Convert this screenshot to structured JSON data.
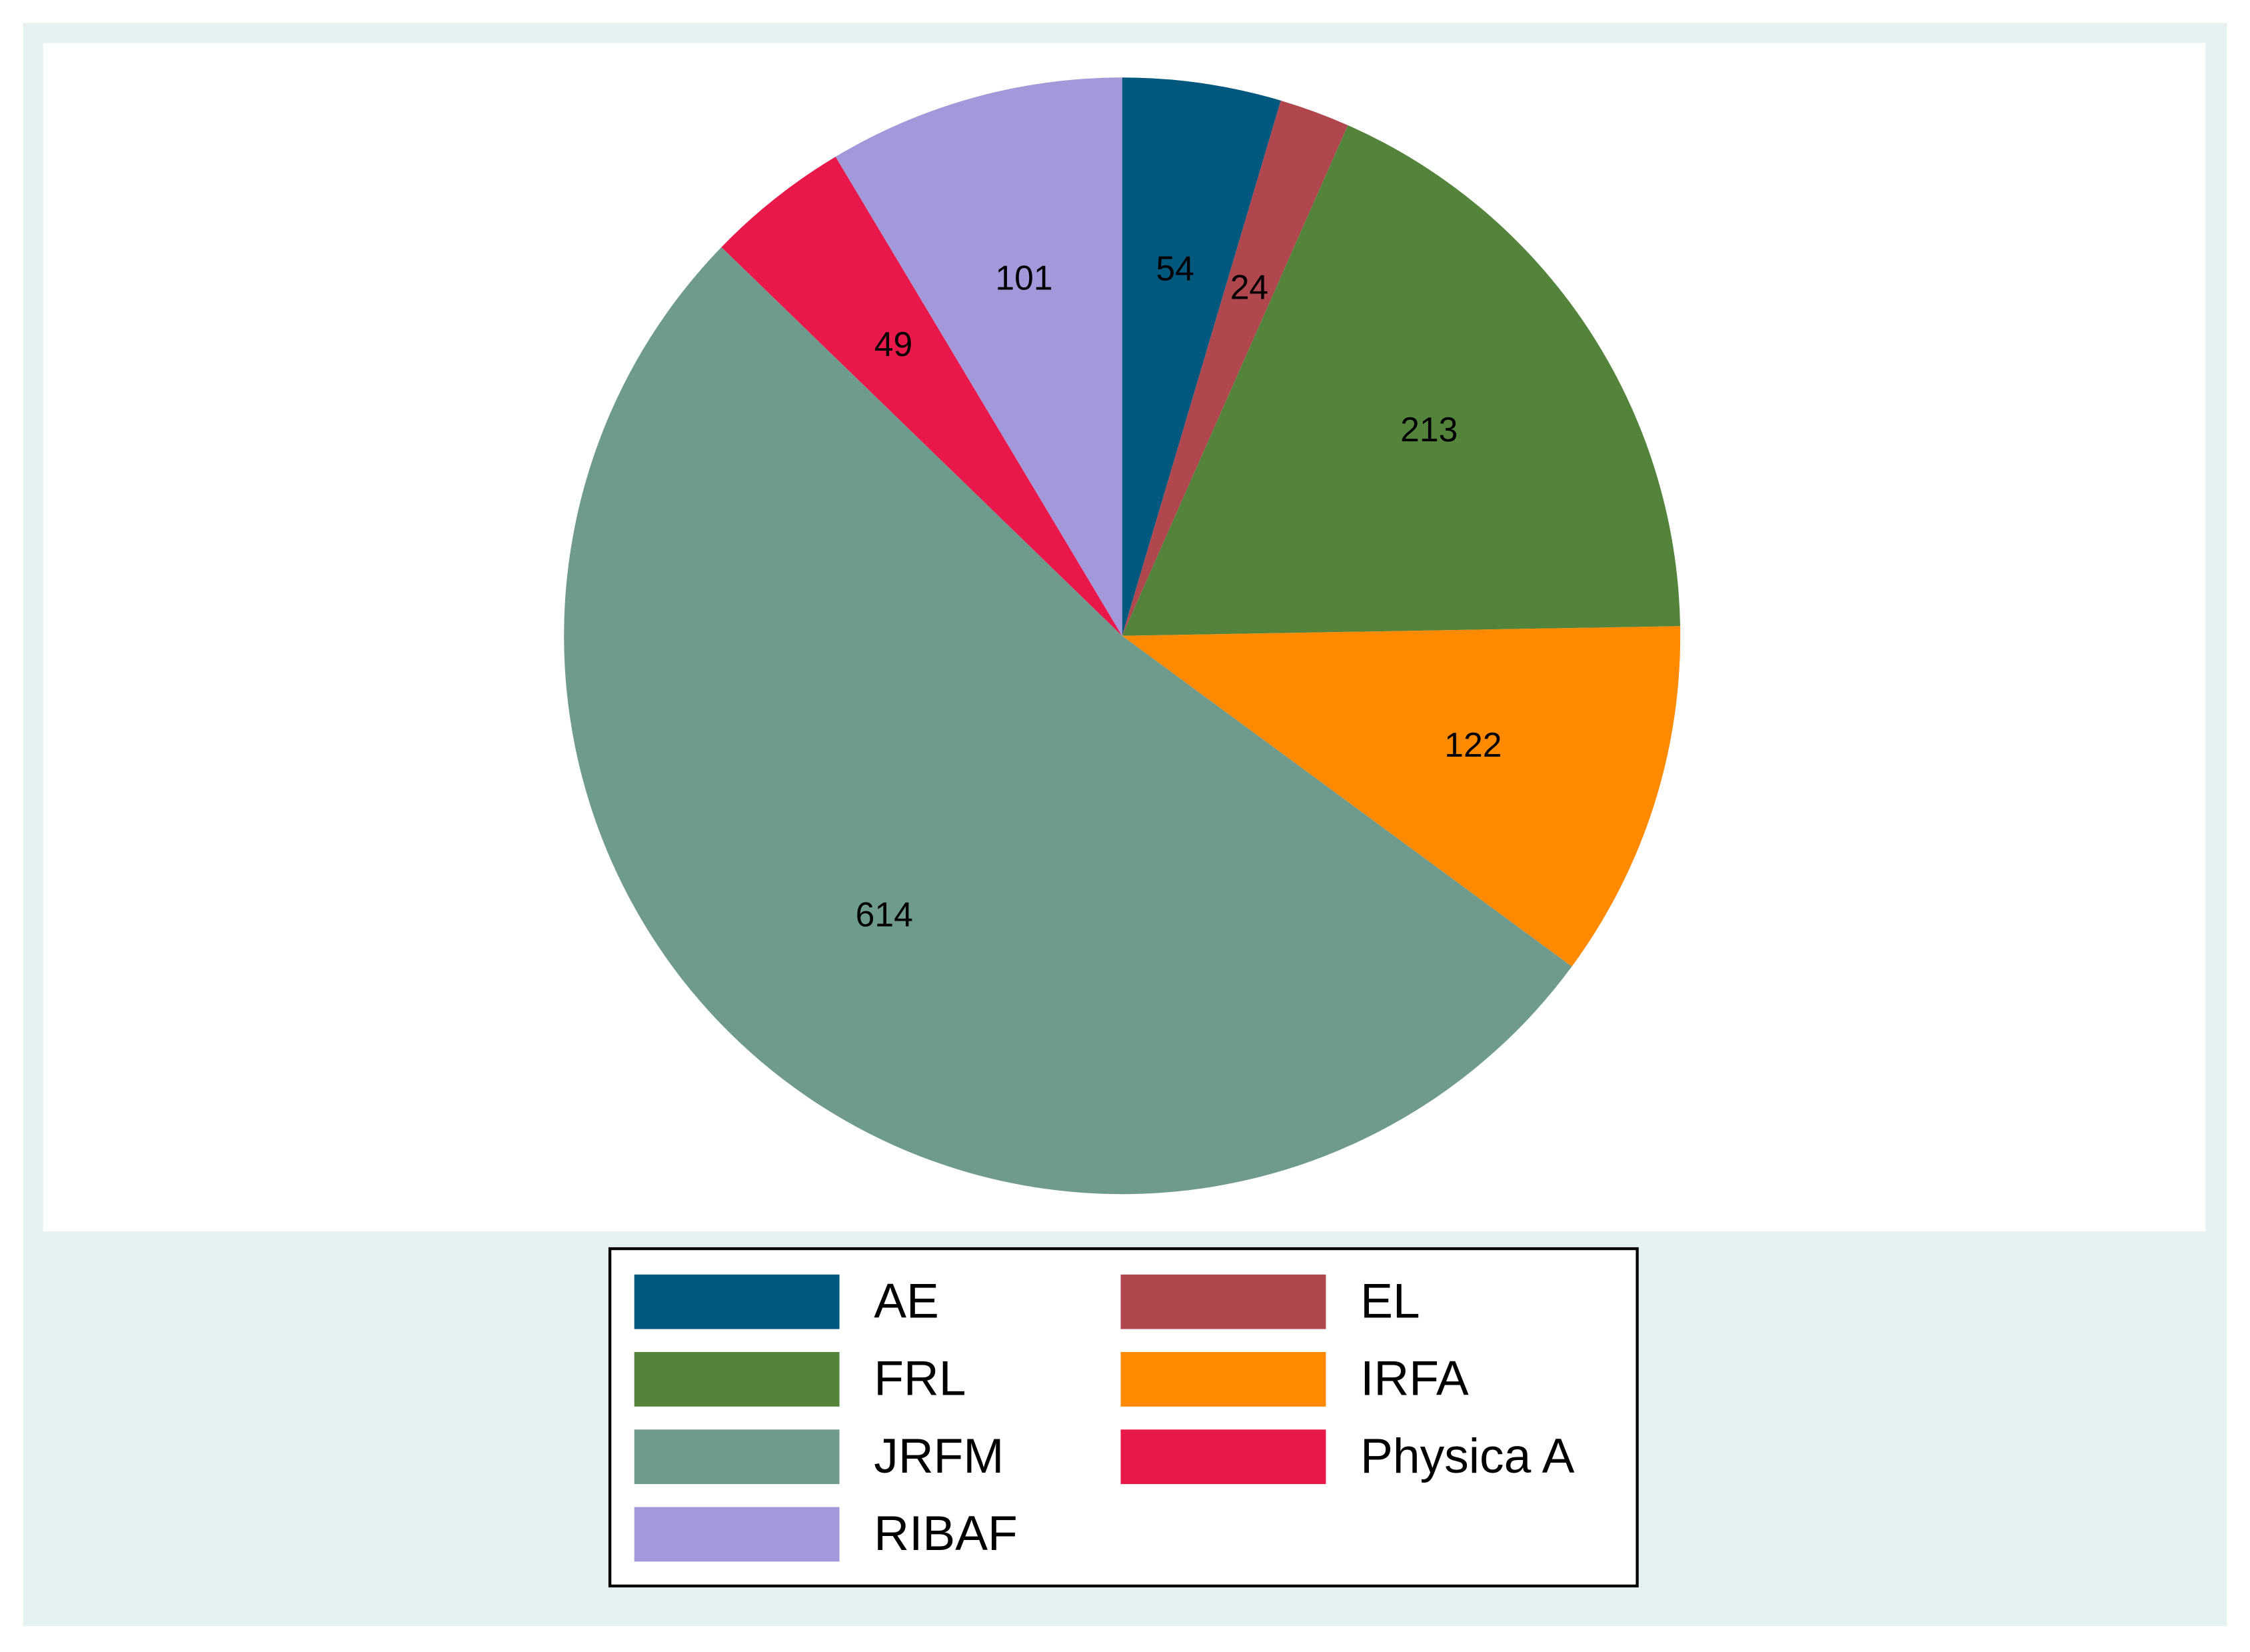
{
  "chart_data": {
    "type": "pie",
    "categories": [
      "AE",
      "EL",
      "FRL",
      "IRFA",
      "JRFM",
      "Physica A",
      "RIBAF"
    ],
    "values": [
      54,
      24,
      213,
      122,
      614,
      49,
      101
    ],
    "colors": [
      "#00587f",
      "#b0474f",
      "#54843c",
      "#ff8a00",
      "#6f9a8e",
      "#e8194a",
      "#a399da"
    ],
    "legend": "bottom"
  }
}
